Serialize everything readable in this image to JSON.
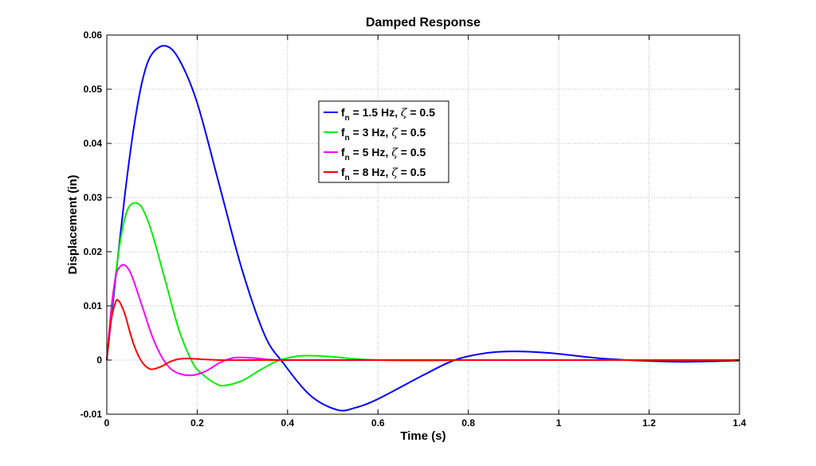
{
  "chart_data": {
    "type": "line",
    "title": "Damped Response",
    "xlabel": "Time (s)",
    "ylabel": "Displacement (in)",
    "xlim": [
      0,
      1.4
    ],
    "ylim": [
      -0.01,
      0.06
    ],
    "xticks": [
      0,
      0.2,
      0.4,
      0.6,
      0.8,
      1,
      1.2,
      1.4
    ],
    "xtick_labels": [
      "0",
      "0.2",
      "0.4",
      "0.6",
      "0.8",
      "1",
      "1.2",
      "1.4"
    ],
    "yticks": [
      -0.01,
      0,
      0.01,
      0.02,
      0.03,
      0.04,
      0.05,
      0.06
    ],
    "ytick_labels": [
      "-0.01",
      "0",
      "0.01",
      "0.02",
      "0.03",
      "0.04",
      "0.05",
      "0.06"
    ],
    "grid": true,
    "legend_position": "upper-center",
    "series": [
      {
        "name": "fn = 1.5 Hz, ζ = 0.5",
        "legend_base": "f",
        "legend_sub": "n",
        "legend_mid": " = 1.5 Hz, ",
        "legend_zeta": "ζ",
        "legend_end": " = 0.5",
        "color": "#0000ff",
        "x": [
          0,
          0.02,
          0.04,
          0.06,
          0.08,
          0.1,
          0.13,
          0.16,
          0.2,
          0.25,
          0.3,
          0.35,
          0.39,
          0.45,
          0.51,
          0.55,
          0.6,
          0.7,
          0.77,
          0.84,
          0.9,
          0.98,
          1.08,
          1.15,
          1.25,
          1.3,
          1.4
        ],
        "y": [
          0,
          0.0155,
          0.0305,
          0.043,
          0.052,
          0.0565,
          0.058,
          0.0555,
          0.0475,
          0.032,
          0.0165,
          0.0045,
          -0.0005,
          -0.0065,
          -0.0092,
          -0.0088,
          -0.0072,
          -0.0028,
          0,
          0.0013,
          0.0016,
          0.0013,
          0.0004,
          0,
          -0.0003,
          -0.0003,
          -0.0001
        ]
      },
      {
        "name": "fn = 3 Hz, ζ = 0.5",
        "legend_base": "f",
        "legend_sub": "n",
        "legend_mid": " = 3 Hz, ",
        "legend_zeta": "ζ",
        "legend_end": " = 0.5",
        "color": "#00ee00",
        "x": [
          0,
          0.01,
          0.02,
          0.03,
          0.04,
          0.05,
          0.065,
          0.08,
          0.1,
          0.13,
          0.16,
          0.19,
          0.21,
          0.24,
          0.26,
          0.3,
          0.34,
          0.38,
          0.42,
          0.45,
          0.5,
          0.55,
          0.6,
          0.7,
          0.8,
          1.0,
          1.2,
          1.4
        ],
        "y": [
          0,
          0.009,
          0.016,
          0.022,
          0.0262,
          0.0284,
          0.029,
          0.0278,
          0.0235,
          0.0145,
          0.0055,
          -0.0005,
          -0.0025,
          -0.0043,
          -0.0047,
          -0.0038,
          -0.0018,
          -0.0001,
          0.0007,
          0.0008,
          0.0006,
          0.0002,
          0.0,
          -0.0001,
          0.0,
          0.0,
          0.0,
          0.0
        ]
      },
      {
        "name": "fn = 5 Hz, ζ = 0.5",
        "legend_base": "f",
        "legend_sub": "n",
        "legend_mid": " = 5 Hz, ",
        "legend_zeta": "ζ",
        "legend_end": " = 0.5",
        "color": "#ff00ff",
        "x": [
          0,
          0.01,
          0.02,
          0.03,
          0.04,
          0.05,
          0.06,
          0.08,
          0.1,
          0.12,
          0.14,
          0.16,
          0.19,
          0.22,
          0.25,
          0.28,
          0.32,
          0.36,
          0.4,
          0.5,
          0.7,
          1.0,
          1.4
        ],
        "y": [
          0,
          0.0095,
          0.0155,
          0.0173,
          0.0175,
          0.0165,
          0.0145,
          0.0095,
          0.0045,
          0.0008,
          -0.0015,
          -0.0025,
          -0.0028,
          -0.002,
          -0.0005,
          0.0004,
          0.0004,
          0.0001,
          0,
          0,
          0,
          0,
          0
        ]
      },
      {
        "name": "fn = 8 Hz, ζ = 0.5",
        "legend_base": "f",
        "legend_sub": "n",
        "legend_mid": " = 8 Hz, ",
        "legend_zeta": "ζ",
        "legend_end": " = 0.5",
        "color": "#ff0000",
        "x": [
          0,
          0.01,
          0.02,
          0.025,
          0.03,
          0.04,
          0.05,
          0.06,
          0.07,
          0.08,
          0.09,
          0.1,
          0.12,
          0.14,
          0.16,
          0.18,
          0.2,
          0.25,
          0.3,
          0.5,
          1.0,
          1.4
        ],
        "y": [
          0,
          0.0075,
          0.0108,
          0.011,
          0.0105,
          0.0085,
          0.0055,
          0.0028,
          0.0008,
          -0.0006,
          -0.0014,
          -0.0017,
          -0.0012,
          -0.0003,
          0.0002,
          0.0003,
          0.0002,
          0.0,
          0.0,
          0,
          0,
          0
        ]
      }
    ]
  }
}
